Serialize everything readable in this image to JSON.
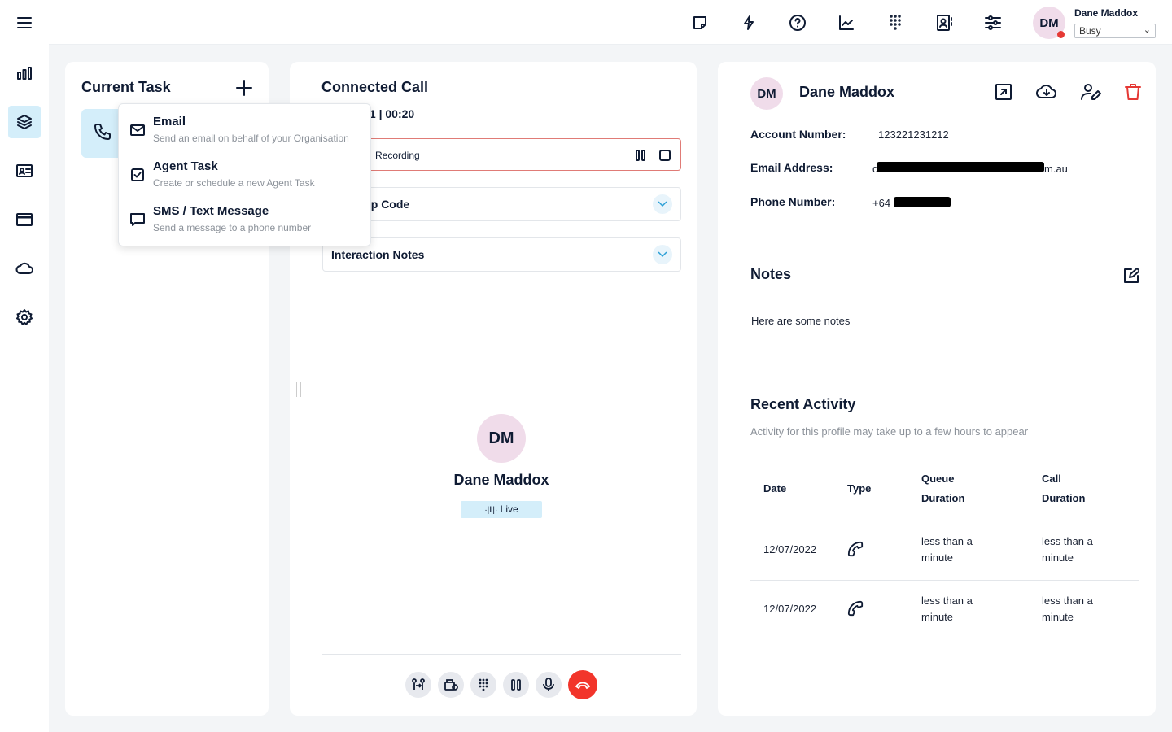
{
  "header": {
    "icons": [
      "sticky-note-icon",
      "lightning-icon",
      "help-icon",
      "chart-line-icon",
      "dialpad-icon",
      "contacts-icon",
      "sliders-icon"
    ],
    "user": {
      "initials": "DM",
      "name": "Dane Maddox",
      "status": "Busy",
      "status_color": "#e53935"
    }
  },
  "sidebar": {
    "icons": [
      "menu-icon",
      "bar-chart-icon",
      "layers-icon",
      "id-card-icon",
      "window-icon",
      "cloud-icon",
      "gear-icon"
    ],
    "active": "layers-icon",
    "accent": "#d4eefa"
  },
  "current_task": {
    "title": "Current Task"
  },
  "new_task_menu": {
    "items": [
      {
        "title": "Email",
        "subtitle": "Send an email on behalf of your Organisation",
        "icon": "mail-icon"
      },
      {
        "title": "Agent Task",
        "subtitle": "Create or schedule a new Agent Task",
        "icon": "checkbox-icon"
      },
      {
        "title": "SMS / Text Message",
        "subtitle": "Send a message to a phone number",
        "icon": "message-icon"
      }
    ]
  },
  "connected_call": {
    "title": "Connected Call",
    "queue_timer": "Q1 | 00:20",
    "recording_label": "Recording",
    "wrapup_label": "Wrap Up Code",
    "notes_label": "Interaction Notes",
    "caller": {
      "initials": "DM",
      "name": "Dane Maddox",
      "status": "Live"
    },
    "controls": [
      "transfer-icon",
      "consult-icon",
      "dialpad-icon",
      "hold-icon",
      "mic-icon",
      "hangup-icon"
    ],
    "hangup_color": "#f2352b"
  },
  "contact": {
    "initials": "DM",
    "name": "Dane Maddox",
    "fields": [
      {
        "label": "Account Number:",
        "value": "123221231212"
      },
      {
        "label": "Email Address:",
        "value_start": "d",
        "value_end": "m.au"
      },
      {
        "label": "Phone Number:",
        "value_start": "+64"
      }
    ],
    "notes_title": "Notes",
    "notes": "Here are some notes",
    "recent_title": "Recent Activity",
    "recent_subtitle": "Activity for this profile may take up to a few hours to appear",
    "table": {
      "headers": [
        "Date",
        "Type",
        "Queue Duration",
        "Call Duration"
      ],
      "rows": [
        {
          "date": "12/07/2022",
          "type": "phone-icon",
          "queue": "less than a minute",
          "call": "less than a minute"
        },
        {
          "date": "12/07/2022",
          "type": "phone-icon",
          "queue": "less than a minute",
          "call": "less than a minute"
        }
      ]
    },
    "delete_color": "#e53935"
  }
}
